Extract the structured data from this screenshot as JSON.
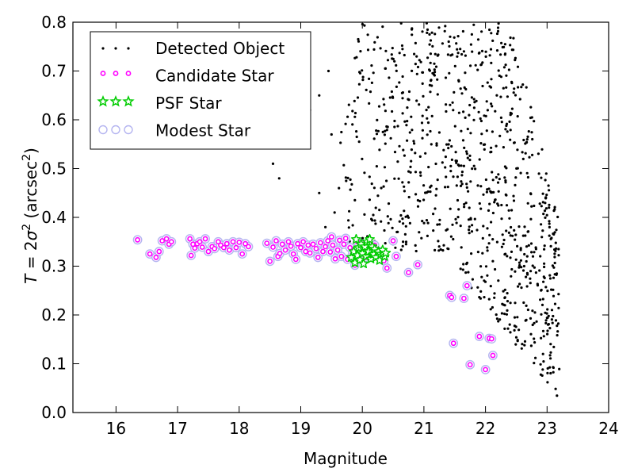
{
  "chart_data": {
    "type": "scatter",
    "xlabel": "Magnitude",
    "ylabel_parts": {
      "lhs": "T",
      "eq": " = 2",
      "sym": "σ",
      "sup": "2",
      "open": " (arcsec",
      "unit_sup": "2",
      "close": ")"
    },
    "xlim": [
      15.3,
      24.0
    ],
    "ylim": [
      0.0,
      0.8
    ],
    "x_ticks": [
      16,
      17,
      18,
      19,
      20,
      21,
      22,
      23,
      24
    ],
    "y_ticks": [
      0.0,
      0.1,
      0.2,
      0.3,
      0.4,
      0.5,
      0.6,
      0.7,
      0.8
    ],
    "legend_position": "top-left",
    "series": [
      {
        "name": "Detected Object",
        "marker": "dot",
        "color": "#000000",
        "generated": true,
        "note_ranges": {
          "mag": [
            18.5,
            23.6
          ],
          "size": [
            0.02,
            0.8
          ]
        }
      },
      {
        "name": "Candidate Star",
        "marker": "circle-small",
        "color": "#ff00ff",
        "points": [
          [
            16.35,
            0.354
          ],
          [
            16.55,
            0.325
          ],
          [
            16.65,
            0.318
          ],
          [
            16.7,
            0.33
          ],
          [
            16.75,
            0.352
          ],
          [
            16.82,
            0.356
          ],
          [
            16.86,
            0.345
          ],
          [
            16.9,
            0.35
          ],
          [
            17.2,
            0.356
          ],
          [
            17.22,
            0.322
          ],
          [
            17.25,
            0.345
          ],
          [
            17.28,
            0.337
          ],
          [
            17.32,
            0.346
          ],
          [
            17.36,
            0.35
          ],
          [
            17.4,
            0.339
          ],
          [
            17.45,
            0.356
          ],
          [
            17.5,
            0.33
          ],
          [
            17.56,
            0.34
          ],
          [
            17.6,
            0.336
          ],
          [
            17.66,
            0.35
          ],
          [
            17.7,
            0.343
          ],
          [
            17.75,
            0.338
          ],
          [
            17.8,
            0.346
          ],
          [
            17.84,
            0.333
          ],
          [
            17.9,
            0.35
          ],
          [
            17.95,
            0.338
          ],
          [
            18.0,
            0.349
          ],
          [
            18.05,
            0.325
          ],
          [
            18.1,
            0.346
          ],
          [
            18.15,
            0.34
          ],
          [
            18.45,
            0.347
          ],
          [
            18.5,
            0.31
          ],
          [
            18.55,
            0.339
          ],
          [
            18.6,
            0.352
          ],
          [
            18.63,
            0.32
          ],
          [
            18.66,
            0.326
          ],
          [
            18.7,
            0.345
          ],
          [
            18.75,
            0.333
          ],
          [
            18.8,
            0.35
          ],
          [
            18.84,
            0.341
          ],
          [
            18.88,
            0.325
          ],
          [
            18.92,
            0.314
          ],
          [
            18.95,
            0.346
          ],
          [
            19.0,
            0.338
          ],
          [
            19.04,
            0.35
          ],
          [
            19.08,
            0.33
          ],
          [
            19.12,
            0.343
          ],
          [
            19.15,
            0.327
          ],
          [
            19.2,
            0.345
          ],
          [
            19.25,
            0.336
          ],
          [
            19.28,
            0.318
          ],
          [
            19.32,
            0.348
          ],
          [
            19.36,
            0.33
          ],
          [
            19.4,
            0.34
          ],
          [
            19.44,
            0.352
          ],
          [
            19.48,
            0.329
          ],
          [
            19.5,
            0.36
          ],
          [
            19.52,
            0.343
          ],
          [
            19.56,
            0.315
          ],
          [
            19.6,
            0.333
          ],
          [
            19.63,
            0.353
          ],
          [
            19.66,
            0.32
          ],
          [
            19.7,
            0.345
          ],
          [
            19.73,
            0.357
          ],
          [
            19.76,
            0.314
          ],
          [
            19.8,
            0.338
          ],
          [
            19.84,
            0.325
          ],
          [
            19.88,
            0.302
          ],
          [
            19.92,
            0.35
          ],
          [
            19.95,
            0.33
          ],
          [
            20.0,
            0.345
          ],
          [
            20.05,
            0.318
          ],
          [
            20.1,
            0.336
          ],
          [
            20.15,
            0.327
          ],
          [
            20.2,
            0.343
          ],
          [
            20.25,
            0.322
          ],
          [
            20.3,
            0.33
          ],
          [
            20.35,
            0.311
          ],
          [
            20.4,
            0.296
          ],
          [
            20.5,
            0.352
          ],
          [
            20.55,
            0.32
          ],
          [
            20.75,
            0.287
          ],
          [
            20.9,
            0.303
          ],
          [
            21.42,
            0.24
          ],
          [
            21.45,
            0.236
          ],
          [
            21.48,
            0.142
          ],
          [
            21.65,
            0.234
          ],
          [
            21.7,
            0.26
          ],
          [
            21.75,
            0.098
          ],
          [
            21.9,
            0.156
          ],
          [
            22.0,
            0.088
          ],
          [
            22.06,
            0.152
          ],
          [
            22.1,
            0.151
          ],
          [
            22.12,
            0.117
          ]
        ]
      },
      {
        "name": "PSF Star",
        "marker": "star",
        "color": "#00cc00",
        "points": [
          [
            19.82,
            0.318
          ],
          [
            19.86,
            0.33
          ],
          [
            19.88,
            0.307
          ],
          [
            19.9,
            0.355
          ],
          [
            19.92,
            0.322
          ],
          [
            19.94,
            0.338
          ],
          [
            19.96,
            0.313
          ],
          [
            19.98,
            0.345
          ],
          [
            20.0,
            0.326
          ],
          [
            20.02,
            0.305
          ],
          [
            20.04,
            0.34
          ],
          [
            20.06,
            0.32
          ],
          [
            20.08,
            0.35
          ],
          [
            20.1,
            0.33
          ],
          [
            20.12,
            0.355
          ],
          [
            20.14,
            0.315
          ],
          [
            20.16,
            0.34
          ],
          [
            20.18,
            0.325
          ],
          [
            20.2,
            0.335
          ],
          [
            20.22,
            0.318
          ],
          [
            20.26,
            0.33
          ],
          [
            20.28,
            0.312
          ],
          [
            20.3,
            0.325
          ],
          [
            20.33,
            0.333
          ],
          [
            20.36,
            0.32
          ],
          [
            20.38,
            0.327
          ]
        ]
      },
      {
        "name": "Modest Star",
        "marker": "circle-large",
        "color": "#b4b4f0",
        "same_as": "Candidate Star"
      }
    ]
  }
}
